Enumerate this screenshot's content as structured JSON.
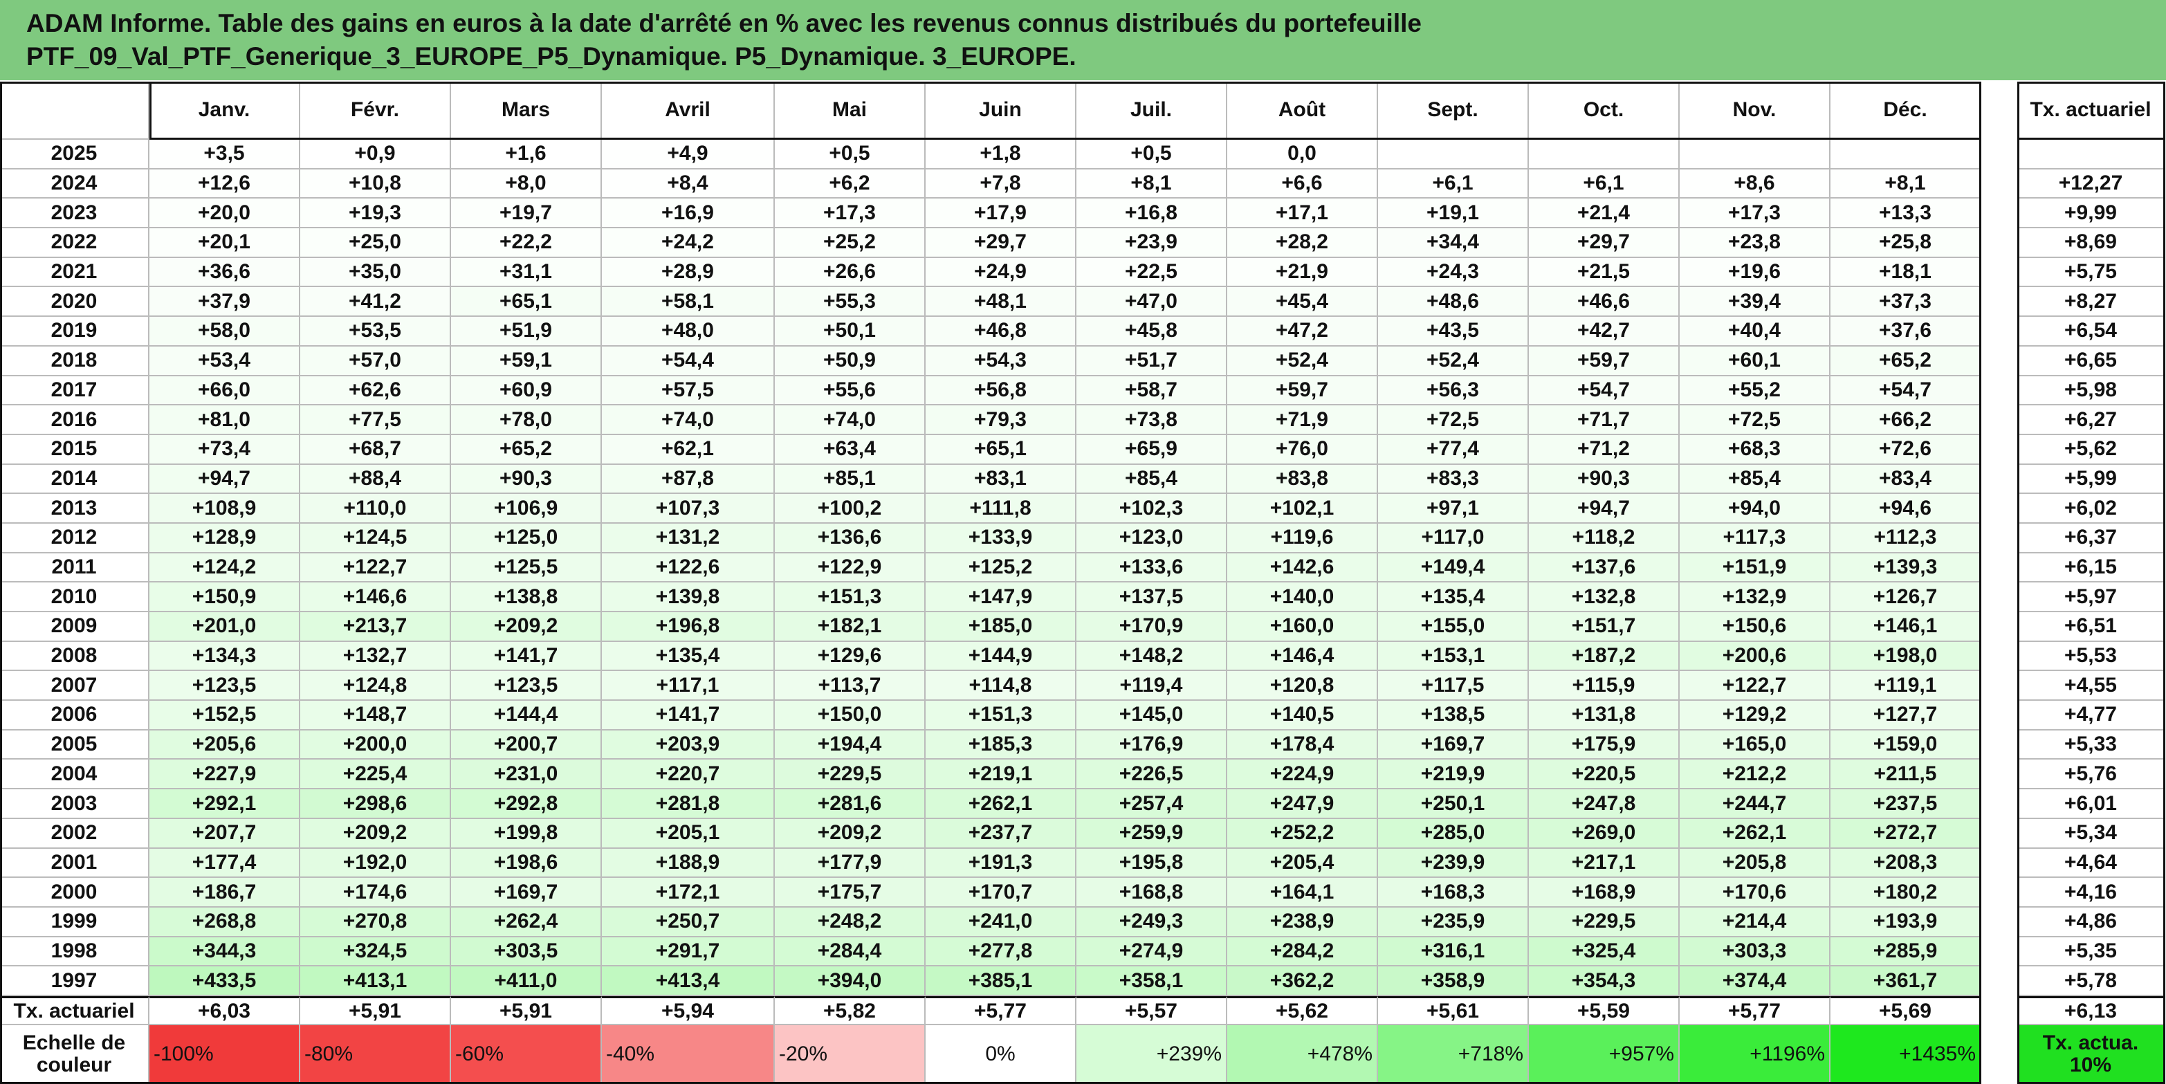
{
  "header": {
    "title_lines": [
      "ADAM Informe. Table des gains en euros à la date d'arrêté en % avec les revenus connus distribués du portefeuille",
      "PTF_09_Val_PTF_Generique_3_EUROPE_P5_Dynamique. P5_Dynamique. 3_EUROPE."
    ]
  },
  "table": {
    "columns": [
      "Janv.",
      "Févr.",
      "Mars",
      "Avril",
      "Mai",
      "Juin",
      "Juil.",
      "Août",
      "Sept.",
      "Oct.",
      "Nov.",
      "Déc."
    ],
    "rate_column": "Tx. actuariel",
    "rows": [
      {
        "year": "2025",
        "values": [
          "+3,5",
          "+0,9",
          "+1,6",
          "+4,9",
          "+0,5",
          "+1,8",
          "+0,5",
          "0,0",
          null,
          null,
          null,
          null
        ],
        "rate": null
      },
      {
        "year": "2024",
        "values": [
          "+12,6",
          "+10,8",
          "+8,0",
          "+8,4",
          "+6,2",
          "+7,8",
          "+8,1",
          "+6,6",
          "+6,1",
          "+6,1",
          "+8,6",
          "+8,1"
        ],
        "rate": "+12,27"
      },
      {
        "year": "2023",
        "values": [
          "+20,0",
          "+19,3",
          "+19,7",
          "+16,9",
          "+17,3",
          "+17,9",
          "+16,8",
          "+17,1",
          "+19,1",
          "+21,4",
          "+17,3",
          "+13,3"
        ],
        "rate": "+9,99"
      },
      {
        "year": "2022",
        "values": [
          "+20,1",
          "+25,0",
          "+22,2",
          "+24,2",
          "+25,2",
          "+29,7",
          "+23,9",
          "+28,2",
          "+34,4",
          "+29,7",
          "+23,8",
          "+25,8"
        ],
        "rate": "+8,69"
      },
      {
        "year": "2021",
        "values": [
          "+36,6",
          "+35,0",
          "+31,1",
          "+28,9",
          "+26,6",
          "+24,9",
          "+22,5",
          "+21,9",
          "+24,3",
          "+21,5",
          "+19,6",
          "+18,1"
        ],
        "rate": "+5,75"
      },
      {
        "year": "2020",
        "values": [
          "+37,9",
          "+41,2",
          "+65,1",
          "+58,1",
          "+55,3",
          "+48,1",
          "+47,0",
          "+45,4",
          "+48,6",
          "+46,6",
          "+39,4",
          "+37,3"
        ],
        "rate": "+8,27"
      },
      {
        "year": "2019",
        "values": [
          "+58,0",
          "+53,5",
          "+51,9",
          "+48,0",
          "+50,1",
          "+46,8",
          "+45,8",
          "+47,2",
          "+43,5",
          "+42,7",
          "+40,4",
          "+37,6"
        ],
        "rate": "+6,54"
      },
      {
        "year": "2018",
        "values": [
          "+53,4",
          "+57,0",
          "+59,1",
          "+54,4",
          "+50,9",
          "+54,3",
          "+51,7",
          "+52,4",
          "+52,4",
          "+59,7",
          "+60,1",
          "+65,2"
        ],
        "rate": "+6,65"
      },
      {
        "year": "2017",
        "values": [
          "+66,0",
          "+62,6",
          "+60,9",
          "+57,5",
          "+55,6",
          "+56,8",
          "+58,7",
          "+59,7",
          "+56,3",
          "+54,7",
          "+55,2",
          "+54,7"
        ],
        "rate": "+5,98"
      },
      {
        "year": "2016",
        "values": [
          "+81,0",
          "+77,5",
          "+78,0",
          "+74,0",
          "+74,0",
          "+79,3",
          "+73,8",
          "+71,9",
          "+72,5",
          "+71,7",
          "+72,5",
          "+66,2"
        ],
        "rate": "+6,27"
      },
      {
        "year": "2015",
        "values": [
          "+73,4",
          "+68,7",
          "+65,2",
          "+62,1",
          "+63,4",
          "+65,1",
          "+65,9",
          "+76,0",
          "+77,4",
          "+71,2",
          "+68,3",
          "+72,6"
        ],
        "rate": "+5,62"
      },
      {
        "year": "2014",
        "values": [
          "+94,7",
          "+88,4",
          "+90,3",
          "+87,8",
          "+85,1",
          "+83,1",
          "+85,4",
          "+83,8",
          "+83,3",
          "+90,3",
          "+85,4",
          "+83,4"
        ],
        "rate": "+5,99"
      },
      {
        "year": "2013",
        "values": [
          "+108,9",
          "+110,0",
          "+106,9",
          "+107,3",
          "+100,2",
          "+111,8",
          "+102,3",
          "+102,1",
          "+97,1",
          "+94,7",
          "+94,0",
          "+94,6"
        ],
        "rate": "+6,02"
      },
      {
        "year": "2012",
        "values": [
          "+128,9",
          "+124,5",
          "+125,0",
          "+131,2",
          "+136,6",
          "+133,9",
          "+123,0",
          "+119,6",
          "+117,0",
          "+118,2",
          "+117,3",
          "+112,3"
        ],
        "rate": "+6,37"
      },
      {
        "year": "2011",
        "values": [
          "+124,2",
          "+122,7",
          "+125,5",
          "+122,6",
          "+122,9",
          "+125,2",
          "+133,6",
          "+142,6",
          "+149,4",
          "+137,6",
          "+151,9",
          "+139,3"
        ],
        "rate": "+6,15"
      },
      {
        "year": "2010",
        "values": [
          "+150,9",
          "+146,6",
          "+138,8",
          "+139,8",
          "+151,3",
          "+147,9",
          "+137,5",
          "+140,0",
          "+135,4",
          "+132,8",
          "+132,9",
          "+126,7"
        ],
        "rate": "+5,97"
      },
      {
        "year": "2009",
        "values": [
          "+201,0",
          "+213,7",
          "+209,2",
          "+196,8",
          "+182,1",
          "+185,0",
          "+170,9",
          "+160,0",
          "+155,0",
          "+151,7",
          "+150,6",
          "+146,1"
        ],
        "rate": "+6,51"
      },
      {
        "year": "2008",
        "values": [
          "+134,3",
          "+132,7",
          "+141,7",
          "+135,4",
          "+129,6",
          "+144,9",
          "+148,2",
          "+146,4",
          "+153,1",
          "+187,2",
          "+200,6",
          "+198,0"
        ],
        "rate": "+5,53"
      },
      {
        "year": "2007",
        "values": [
          "+123,5",
          "+124,8",
          "+123,5",
          "+117,1",
          "+113,7",
          "+114,8",
          "+119,4",
          "+120,8",
          "+117,5",
          "+115,9",
          "+122,7",
          "+119,1"
        ],
        "rate": "+4,55"
      },
      {
        "year": "2006",
        "values": [
          "+152,5",
          "+148,7",
          "+144,4",
          "+141,7",
          "+150,0",
          "+151,3",
          "+145,0",
          "+140,5",
          "+138,5",
          "+131,8",
          "+129,2",
          "+127,7"
        ],
        "rate": "+4,77"
      },
      {
        "year": "2005",
        "values": [
          "+205,6",
          "+200,0",
          "+200,7",
          "+203,9",
          "+194,4",
          "+185,3",
          "+176,9",
          "+178,4",
          "+169,7",
          "+175,9",
          "+165,0",
          "+159,0"
        ],
        "rate": "+5,33"
      },
      {
        "year": "2004",
        "values": [
          "+227,9",
          "+225,4",
          "+231,0",
          "+220,7",
          "+229,5",
          "+219,1",
          "+226,5",
          "+224,9",
          "+219,9",
          "+220,5",
          "+212,2",
          "+211,5"
        ],
        "rate": "+5,76"
      },
      {
        "year": "2003",
        "values": [
          "+292,1",
          "+298,6",
          "+292,8",
          "+281,8",
          "+281,6",
          "+262,1",
          "+257,4",
          "+247,9",
          "+250,1",
          "+247,8",
          "+244,7",
          "+237,5"
        ],
        "rate": "+6,01"
      },
      {
        "year": "2002",
        "values": [
          "+207,7",
          "+209,2",
          "+199,8",
          "+205,1",
          "+209,2",
          "+237,7",
          "+259,9",
          "+252,2",
          "+285,0",
          "+269,0",
          "+262,1",
          "+272,7"
        ],
        "rate": "+5,34"
      },
      {
        "year": "2001",
        "values": [
          "+177,4",
          "+192,0",
          "+198,6",
          "+188,9",
          "+177,9",
          "+191,3",
          "+195,8",
          "+205,4",
          "+239,9",
          "+217,1",
          "+205,8",
          "+208,3"
        ],
        "rate": "+4,64"
      },
      {
        "year": "2000",
        "values": [
          "+186,7",
          "+174,6",
          "+169,7",
          "+172,1",
          "+175,7",
          "+170,7",
          "+168,8",
          "+164,1",
          "+168,3",
          "+168,9",
          "+170,6",
          "+180,2"
        ],
        "rate": "+4,16"
      },
      {
        "year": "1999",
        "values": [
          "+268,8",
          "+270,8",
          "+262,4",
          "+250,7",
          "+248,2",
          "+241,0",
          "+249,3",
          "+238,9",
          "+235,9",
          "+229,5",
          "+214,4",
          "+193,9"
        ],
        "rate": "+4,86"
      },
      {
        "year": "1998",
        "values": [
          "+344,3",
          "+324,5",
          "+303,5",
          "+291,7",
          "+284,4",
          "+277,8",
          "+274,9",
          "+284,2",
          "+316,1",
          "+325,4",
          "+303,3",
          "+285,9"
        ],
        "rate": "+5,35"
      },
      {
        "year": "1997",
        "values": [
          "+433,5",
          "+413,1",
          "+411,0",
          "+413,4",
          "+394,0",
          "+385,1",
          "+358,1",
          "+362,2",
          "+358,9",
          "+354,3",
          "+374,4",
          "+361,7"
        ],
        "rate": "+5,78"
      }
    ],
    "footer": {
      "label": "Tx. actuariel",
      "values": [
        "+6,03",
        "+5,91",
        "+5,91",
        "+5,94",
        "+5,82",
        "+5,77",
        "+5,57",
        "+5,62",
        "+5,61",
        "+5,59",
        "+5,77",
        "+5,69"
      ],
      "rate": "+6,13"
    },
    "scale": {
      "label": "Echelle de couleur",
      "items": [
        {
          "label": "-100%",
          "color": "#f03a3a"
        },
        {
          "label": "-80%",
          "color": "#f24444"
        },
        {
          "label": "-60%",
          "color": "#f44e4e"
        },
        {
          "label": "-40%",
          "color": "#f78787"
        },
        {
          "label": "-20%",
          "color": "#fcc4c4"
        },
        {
          "label": "0%",
          "color": "#ffffff"
        },
        {
          "label": "+239%",
          "color": "#d6fcd6"
        },
        {
          "label": "+478%",
          "color": "#b2f8b2"
        },
        {
          "label": "+718%",
          "color": "#86f486"
        },
        {
          "label": "+957%",
          "color": "#5af05a"
        },
        {
          "label": "+1196%",
          "color": "#3aec3a"
        },
        {
          "label": "+1435%",
          "color": "#1ee81e"
        }
      ],
      "rate": {
        "label": "Tx. actua. 10%",
        "color": "#20e020"
      }
    }
  }
}
